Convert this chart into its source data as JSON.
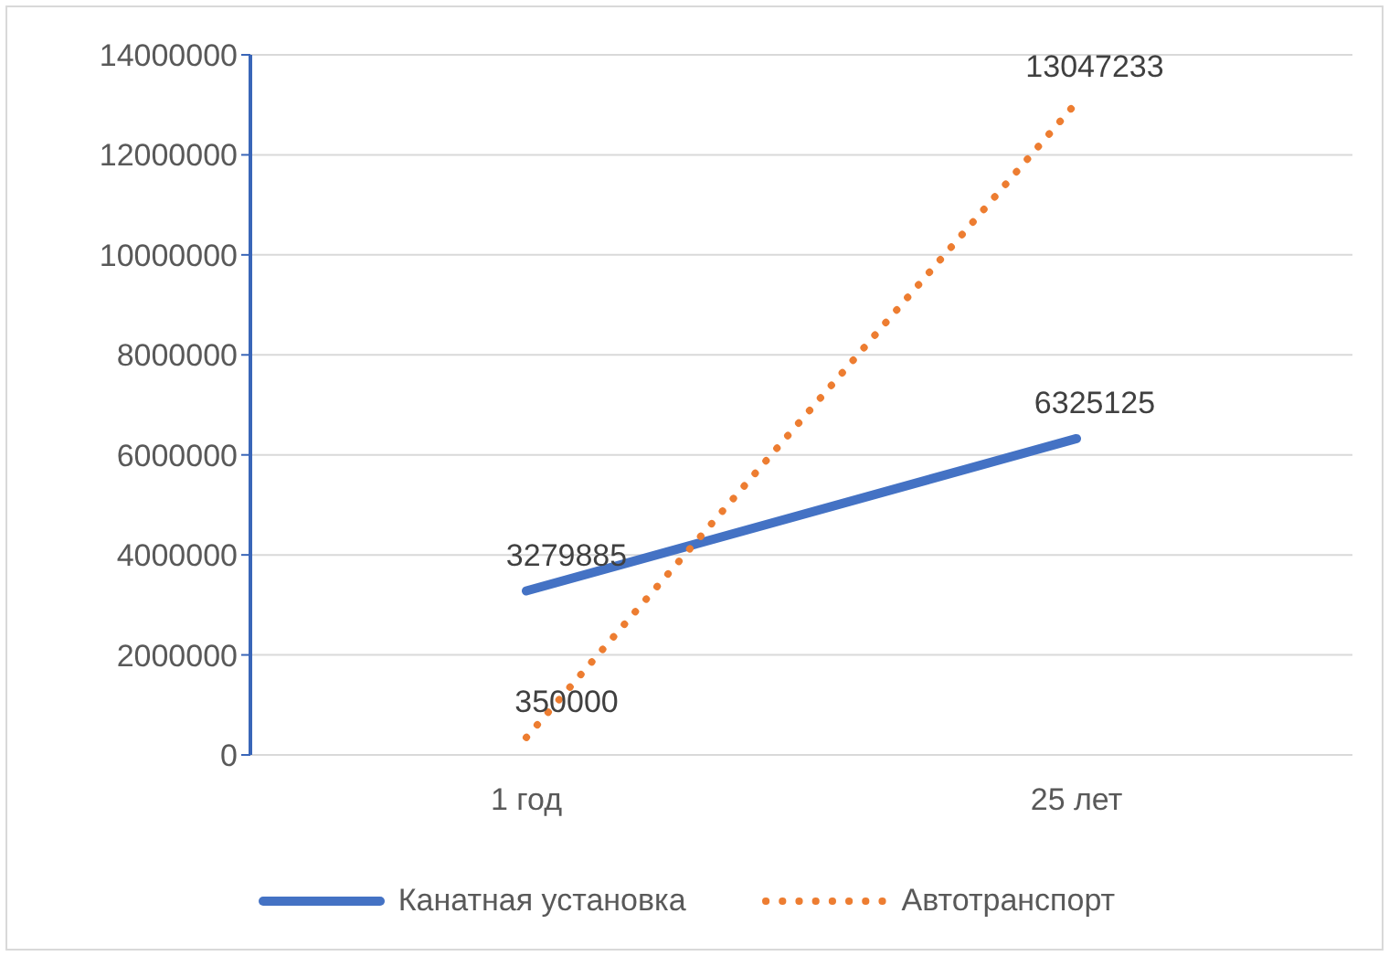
{
  "chart_data": {
    "type": "line",
    "categories": [
      "1 год",
      "25 лет"
    ],
    "series": [
      {
        "name": "Канатная установка",
        "color": "#4472c4",
        "values": [
          3279885,
          6325125
        ],
        "line_style": "solid"
      },
      {
        "name": "Автотранспорт",
        "color": "#ed7d31",
        "values": [
          350000,
          13047233
        ],
        "line_style": "dotted"
      }
    ],
    "ylim": [
      0,
      14000000
    ],
    "yticks": [
      0,
      2000000,
      4000000,
      6000000,
      8000000,
      10000000,
      12000000,
      14000000
    ],
    "grid": "y",
    "legend": "bottom",
    "data_labels": true,
    "marker": "none"
  }
}
